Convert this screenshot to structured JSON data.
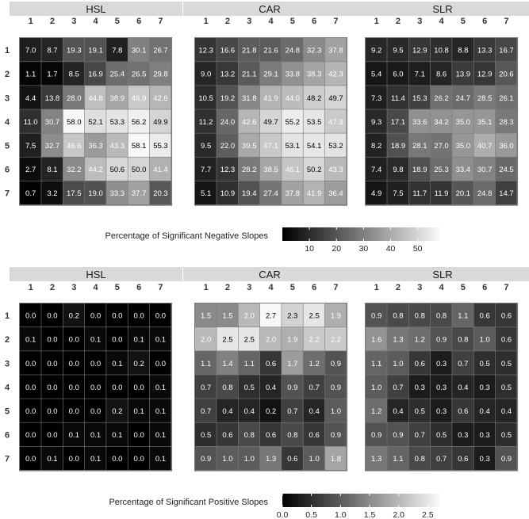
{
  "chart_data": [
    {
      "type": "heatmap",
      "panels": [
        "HSL",
        "CAR",
        "SLR"
      ],
      "rows": [
        "1",
        "2",
        "3",
        "4",
        "5",
        "6",
        "7"
      ],
      "cols": [
        "1",
        "2",
        "3",
        "4",
        "5",
        "6",
        "7"
      ],
      "legend_title": "Percentage of Significant Negative Slopes",
      "legend_ticks": [
        10,
        20,
        30,
        40,
        50
      ],
      "scale": [
        0,
        58
      ],
      "values": {
        "HSL": [
          [
            7.0,
            8.7,
            19.3,
            19.1,
            7.8,
            30.1,
            26.7
          ],
          [
            1.1,
            1.7,
            8.5,
            16.9,
            25.4,
            26.5,
            29.8
          ],
          [
            4.4,
            13.8,
            28.0,
            44.8,
            38.9,
            46.9,
            42.6
          ],
          [
            11.0,
            30.7,
            58.0,
            52.1,
            53.3,
            56.2,
            49.9
          ],
          [
            7.5,
            32.7,
            46.6,
            36.3,
            43.3,
            58.1,
            55.3
          ],
          [
            2.7,
            8.1,
            32.2,
            44.2,
            50.6,
            50.0,
            41.4
          ],
          [
            0.7,
            3.2,
            17.5,
            19.0,
            33.3,
            37.7,
            20.3
          ]
        ],
        "CAR": [
          [
            12.3,
            16.6,
            21.8,
            21.6,
            24.8,
            32.3,
            37.8
          ],
          [
            9.0,
            13.2,
            21.1,
            29.1,
            33.8,
            38.3,
            42.3
          ],
          [
            10.5,
            19.2,
            31.8,
            41.9,
            44.0,
            48.2,
            49.7
          ],
          [
            11.2,
            24.0,
            42.6,
            49.7,
            55.2,
            53.5,
            47.3
          ],
          [
            9.5,
            22.0,
            39.5,
            47.1,
            53.1,
            54.1,
            53.2
          ],
          [
            7.7,
            12.3,
            28.2,
            38.5,
            46.1,
            50.2,
            43.3
          ],
          [
            5.1,
            10.9,
            19.4,
            27.4,
            37.8,
            41.9,
            36.4
          ]
        ],
        "SLR": [
          [
            9.2,
            9.5,
            12.9,
            10.8,
            8.8,
            13.3,
            16.7
          ],
          [
            5.4,
            6.0,
            7.1,
            8.6,
            13.9,
            12.9,
            20.6
          ],
          [
            7.3,
            11.4,
            15.3,
            26.2,
            24.7,
            28.5,
            26.1
          ],
          [
            9.3,
            17.1,
            33.6,
            34.2,
            35.0,
            35.1,
            28.3
          ],
          [
            8.2,
            18.9,
            28.1,
            27.0,
            35.0,
            40.7,
            36.0
          ],
          [
            7.4,
            9.8,
            18.9,
            25.3,
            33.4,
            30.7,
            24.5
          ],
          [
            4.9,
            7.5,
            11.7,
            11.9,
            20.1,
            24.8,
            14.7
          ]
        ]
      }
    },
    {
      "type": "heatmap",
      "panels": [
        "HSL",
        "CAR",
        "SLR"
      ],
      "rows": [
        "1",
        "2",
        "3",
        "4",
        "5",
        "6",
        "7"
      ],
      "cols": [
        "1",
        "2",
        "3",
        "4",
        "5",
        "6",
        "7"
      ],
      "legend_title": "Percentage of Significant Positive Slopes",
      "legend_ticks": [
        "0.0",
        "0.5",
        "1.0",
        "1.5",
        "2.0",
        "2.5"
      ],
      "scale": [
        0,
        2.7
      ],
      "values": {
        "HSL": [
          [
            0.0,
            0.0,
            0.2,
            0.0,
            0.0,
            0.0,
            0.0
          ],
          [
            0.1,
            0.0,
            0.0,
            0.1,
            0.0,
            0.1,
            0.1
          ],
          [
            0.0,
            0.0,
            0.0,
            0.0,
            0.1,
            0.2,
            0.0
          ],
          [
            0.0,
            0.0,
            0.0,
            0.0,
            0.0,
            0.0,
            0.1
          ],
          [
            0.0,
            0.0,
            0.0,
            0.0,
            0.2,
            0.1,
            0.1
          ],
          [
            0.0,
            0.0,
            0.1,
            0.1,
            0.1,
            0.0,
            0.1
          ],
          [
            0.0,
            0.1,
            0.0,
            0.1,
            0.0,
            0.0,
            0.1
          ]
        ],
        "CAR": [
          [
            1.5,
            1.5,
            2.0,
            2.7,
            2.3,
            2.5,
            1.9
          ],
          [
            2.0,
            2.5,
            2.5,
            2.0,
            1.9,
            2.2,
            2.2
          ],
          [
            1.1,
            1.4,
            1.1,
            0.6,
            1.7,
            1.2,
            0.9
          ],
          [
            0.7,
            0.8,
            0.5,
            0.4,
            0.9,
            0.7,
            0.9
          ],
          [
            0.7,
            0.4,
            0.4,
            0.2,
            0.7,
            0.4,
            1.0
          ],
          [
            0.5,
            0.6,
            0.8,
            0.6,
            0.8,
            0.6,
            0.9
          ],
          [
            0.9,
            1.0,
            1.0,
            1.3,
            0.6,
            1.0,
            1.8
          ]
        ],
        "SLR": [
          [
            0.9,
            0.8,
            0.8,
            0.8,
            1.1,
            0.6,
            0.6
          ],
          [
            1.6,
            1.3,
            1.2,
            0.9,
            0.8,
            1.0,
            0.6
          ],
          [
            1.1,
            1.0,
            0.6,
            0.3,
            0.7,
            0.5,
            0.5
          ],
          [
            1.0,
            0.7,
            0.3,
            0.3,
            0.4,
            0.3,
            0.5
          ],
          [
            1.2,
            0.4,
            0.5,
            0.3,
            0.6,
            0.4,
            0.4
          ],
          [
            0.9,
            0.9,
            0.7,
            0.5,
            0.3,
            0.3,
            0.5
          ],
          [
            1.3,
            1.1,
            0.8,
            0.7,
            0.6,
            0.3,
            0.9
          ]
        ]
      }
    }
  ]
}
